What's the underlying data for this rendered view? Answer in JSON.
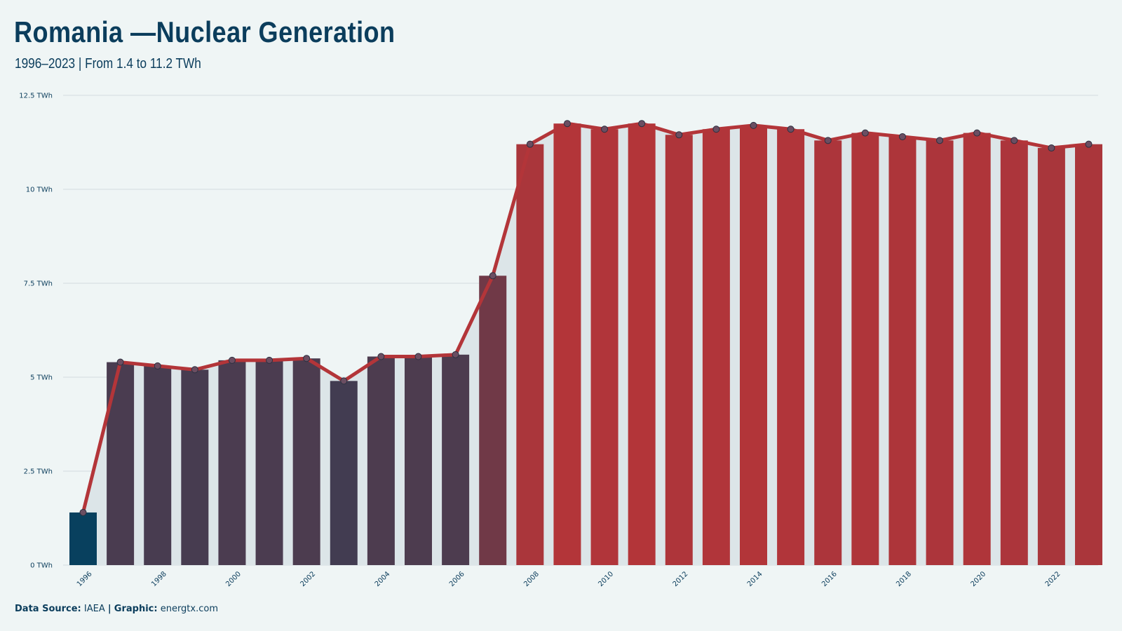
{
  "title": "Romania —Nuclear Generation",
  "subtitle": "1996–2023 | From 1.4 to 11.2 TWh",
  "footer": {
    "source_label": "Data Source:",
    "source_value": "IAEA",
    "separator": "|",
    "graphic_label": "Graphic:",
    "graphic_value": "energtx.com"
  },
  "colors": {
    "background": "#eff5f5",
    "text": "#0b3d5c",
    "line": "#b33539",
    "area": "#dce5e8",
    "bar_low": "#08405e",
    "bar_high": "#b33539",
    "grid": "#d3dcdf"
  },
  "chart_data": {
    "type": "bar",
    "title": "Romania —Nuclear Generation",
    "subtitle": "1996–2023 | From 1.4 to 11.2 TWh",
    "ylim": [
      0,
      12.5
    ],
    "y_ticks": [
      "0 TWh",
      "2.5 TWh",
      "5 TWh",
      "7.5 TWh",
      "10 TWh",
      "12.5 TWh"
    ],
    "y_tick_values": [
      0,
      2.5,
      5,
      7.5,
      10,
      12.5
    ],
    "x_tick_labels": [
      "1996",
      "1998",
      "2000",
      "2002",
      "2004",
      "2006",
      "2008",
      "2010",
      "2012",
      "2014",
      "2016",
      "2018",
      "2020",
      "2022"
    ],
    "grid": true,
    "overlays": [
      "line with markers",
      "shaded area"
    ],
    "categories": [
      1996,
      1997,
      1998,
      1999,
      2000,
      2001,
      2002,
      2003,
      2004,
      2005,
      2006,
      2007,
      2008,
      2009,
      2010,
      2011,
      2012,
      2013,
      2014,
      2015,
      2016,
      2017,
      2018,
      2019,
      2020,
      2021,
      2022,
      2023
    ],
    "values": [
      1.4,
      5.4,
      5.3,
      5.2,
      5.45,
      5.45,
      5.5,
      4.9,
      5.55,
      5.55,
      5.6,
      7.7,
      11.2,
      11.75,
      11.6,
      11.75,
      11.45,
      11.6,
      11.7,
      11.6,
      11.3,
      11.5,
      11.4,
      11.3,
      11.5,
      11.3,
      11.1,
      11.2
    ]
  }
}
